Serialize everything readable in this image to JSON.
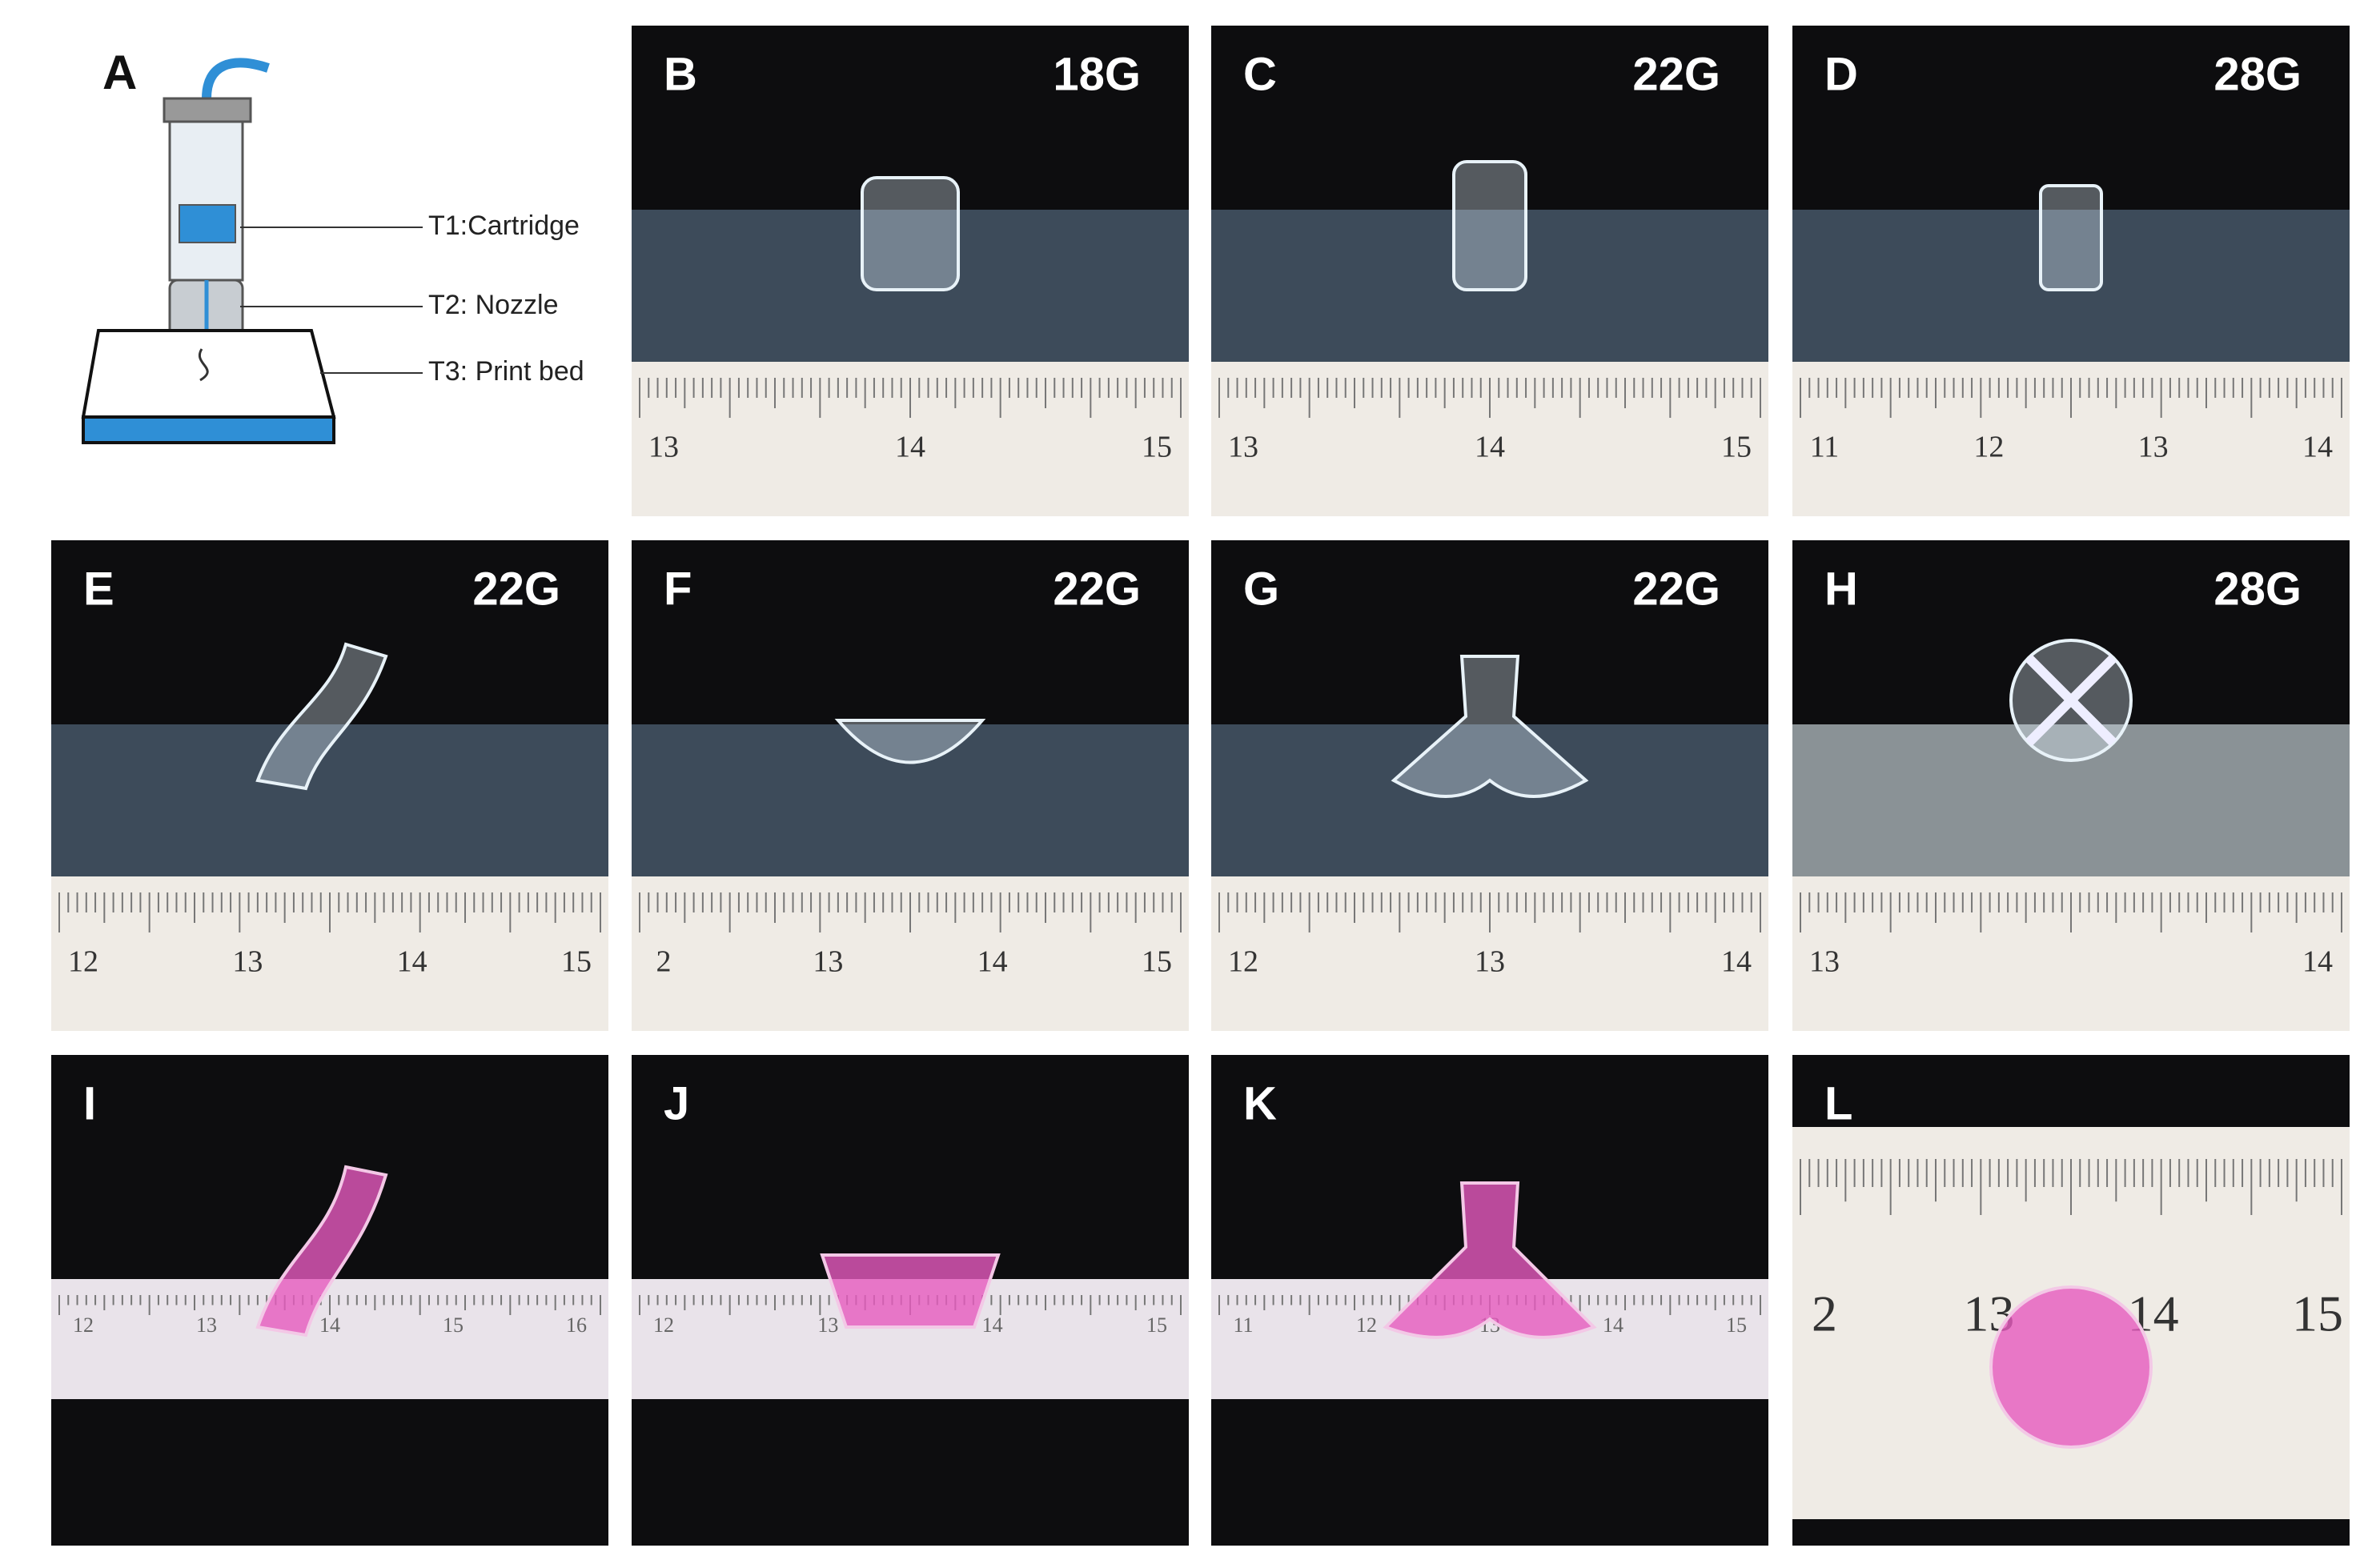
{
  "diagram": {
    "label": "A",
    "parts": [
      "T1:Cartridge",
      "T2: Nozzle",
      "T3: Print bed"
    ]
  },
  "panels": [
    {
      "label": "B",
      "gauge": "18G",
      "ruler": [
        "13",
        "14",
        "15"
      ]
    },
    {
      "label": "C",
      "gauge": "22G",
      "ruler": [
        "13",
        "14",
        "15"
      ]
    },
    {
      "label": "D",
      "gauge": "28G",
      "ruler": [
        "11",
        "12",
        "13",
        "14"
      ]
    },
    {
      "label": "E",
      "gauge": "22G",
      "ruler": [
        "12",
        "13",
        "14",
        "15"
      ]
    },
    {
      "label": "F",
      "gauge": "22G",
      "ruler": [
        "2",
        "13",
        "14",
        "15"
      ]
    },
    {
      "label": "G",
      "gauge": "22G",
      "ruler": [
        "12",
        "13",
        "14"
      ]
    },
    {
      "label": "H",
      "gauge": "28G",
      "ruler": [
        "13",
        "14"
      ]
    },
    {
      "label": "I",
      "ruler": [
        "12",
        "13",
        "14",
        "15",
        "16"
      ]
    },
    {
      "label": "J",
      "ruler": [
        "12",
        "13",
        "14",
        "15"
      ]
    },
    {
      "label": "K",
      "ruler": [
        "11",
        "12",
        "13",
        "14",
        "15"
      ]
    },
    {
      "label": "L",
      "ruler": [
        "2",
        "13",
        "14",
        "15"
      ]
    }
  ]
}
